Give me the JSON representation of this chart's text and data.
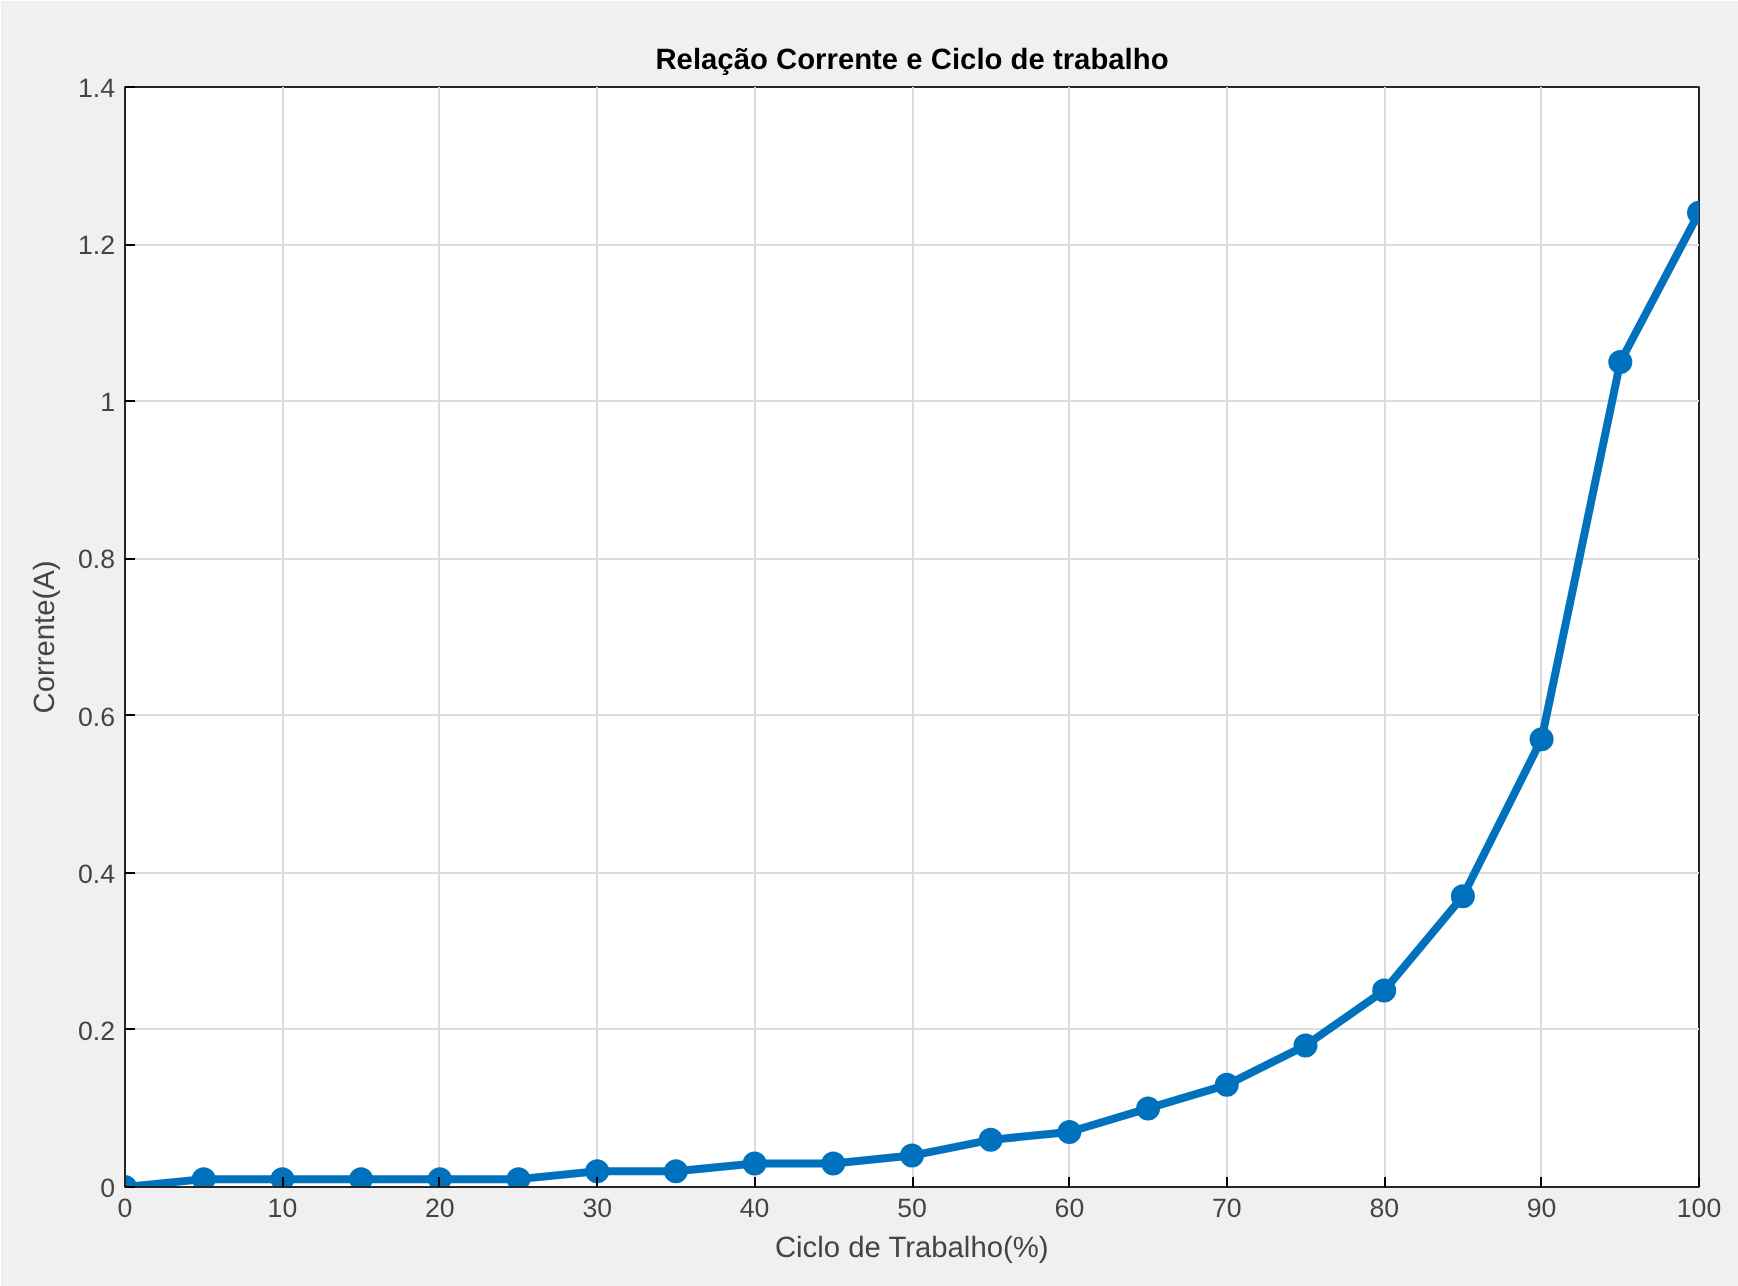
{
  "chart_data": {
    "type": "line",
    "title": "Relação Corrente e Ciclo de trabalho",
    "xlabel": "Ciclo de Trabalho(%)",
    "ylabel": "Corrente(A)",
    "x": [
      0,
      5,
      10,
      15,
      20,
      25,
      30,
      35,
      40,
      45,
      50,
      55,
      60,
      65,
      70,
      75,
      80,
      85,
      90,
      95,
      100
    ],
    "series": [
      {
        "color": "#0072bd",
        "values": [
          0,
          0.01,
          0.01,
          0.01,
          0.01,
          0.01,
          0.02,
          0.02,
          0.03,
          0.03,
          0.04,
          0.06,
          0.07,
          0.1,
          0.13,
          0.18,
          0.25,
          0.37,
          0.57,
          1.05,
          1.24
        ]
      }
    ],
    "xlim": [
      0,
      100
    ],
    "xticks": [
      0,
      10,
      20,
      30,
      40,
      50,
      60,
      70,
      80,
      90,
      100
    ],
    "ylim": [
      0,
      1.4
    ],
    "yticks": [
      0,
      0.2,
      0.4,
      0.6,
      0.8,
      1,
      1.2,
      1.4
    ],
    "grid": true,
    "marker": "circle",
    "line_style": "solid"
  }
}
